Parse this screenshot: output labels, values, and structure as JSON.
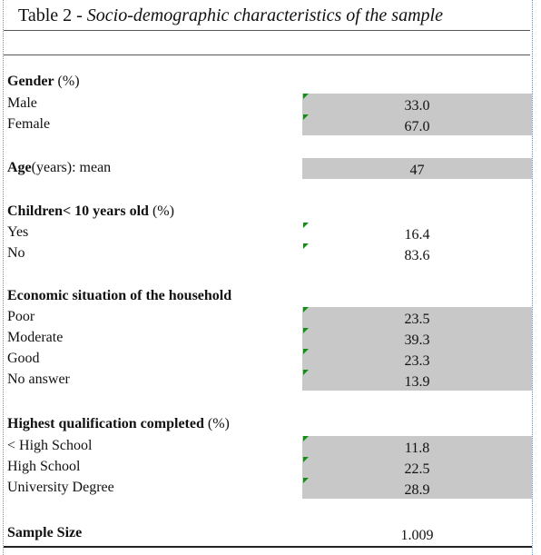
{
  "title": {
    "prefix": "Table 2 - ",
    "text": "Socio-demographic characteristics of the sample"
  },
  "sections": [
    {
      "heading": "Gender",
      "unit": "(%)",
      "rows": [
        {
          "label": "Male",
          "value": "33.0"
        },
        {
          "label": "Female",
          "value": "67.0"
        }
      ]
    },
    {
      "heading": "Age",
      "unit": "(years): mean",
      "value": "47"
    },
    {
      "heading": "Children< 10 years old",
      "unit": "(%)",
      "rows": [
        {
          "label": "Yes",
          "value": "16.4"
        },
        {
          "label": "No",
          "value": "83.6"
        }
      ]
    },
    {
      "heading": "Economic situation of the household",
      "rows": [
        {
          "label": "Poor",
          "value": "23.5"
        },
        {
          "label": "Moderate",
          "value": "39.3"
        },
        {
          "label": "Good",
          "value": "23.3"
        },
        {
          "label": "No answer",
          "value": "13.9"
        }
      ]
    },
    {
      "heading": "Highest qualification completed",
      "unit": "(%)",
      "rows": [
        {
          "label": "< High School",
          "value": "11.8"
        },
        {
          "label": "High School",
          "value": "22.5"
        },
        {
          "label": "University Degree",
          "value": "28.9"
        }
      ]
    }
  ],
  "footer": {
    "label": "Sample Size",
    "value": "1.009"
  }
}
